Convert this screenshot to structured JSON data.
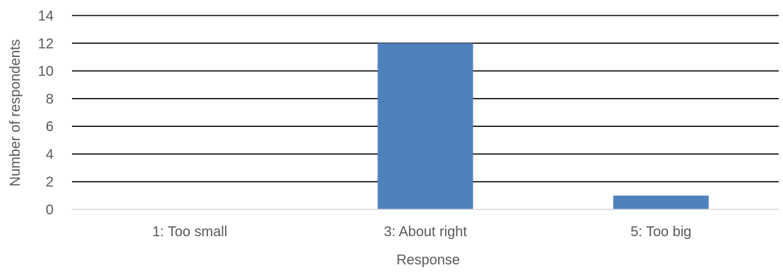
{
  "chart_data": {
    "type": "bar",
    "title": "",
    "xlabel": "Response",
    "ylabel": "Number of respondents",
    "categories": [
      "1: Too small",
      "3: About right",
      "5: Too big"
    ],
    "values": [
      0,
      12,
      1
    ],
    "ylim": [
      0,
      14
    ],
    "yticks": [
      0,
      2,
      4,
      6,
      8,
      10,
      12,
      14
    ],
    "grid": true,
    "legend": "none",
    "bar_color": "#4F81BD",
    "gridline_color": "#000000",
    "axis_color": "#D9D9D9",
    "text_color": "#595959"
  }
}
